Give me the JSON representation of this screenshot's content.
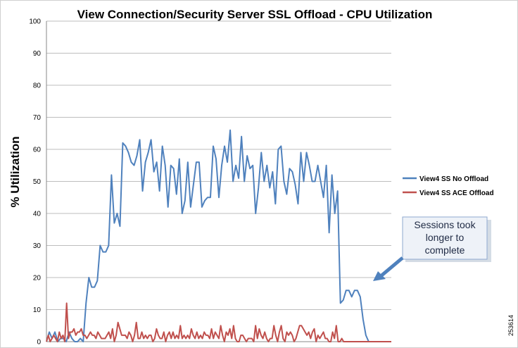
{
  "chart_data": {
    "type": "line",
    "title": "View Connection/Security Server SSL Offload - CPU Utilization",
    "xlabel": "",
    "ylabel": "% Utilization",
    "ylim": [
      0,
      100
    ],
    "yticks": [
      0,
      10,
      20,
      30,
      40,
      50,
      60,
      70,
      80,
      90,
      100
    ],
    "grid": true,
    "legend_position": "right",
    "series": [
      {
        "name": "View4 SS No Offload",
        "color": "#4f81bd",
        "values": [
          0,
          3,
          1,
          3,
          0,
          1,
          1,
          0,
          3,
          1,
          0,
          0,
          1,
          0,
          12,
          20,
          17,
          17,
          19,
          30,
          28,
          28,
          30,
          52,
          37,
          40,
          36,
          62,
          61,
          59,
          56,
          55,
          58,
          63,
          47,
          56,
          59,
          63,
          53,
          56,
          47,
          61,
          55,
          42,
          55,
          54,
          46,
          57,
          40,
          44,
          56,
          42,
          49,
          56,
          56,
          42,
          44,
          45,
          45,
          61,
          57,
          45,
          55,
          61,
          56,
          66,
          50,
          55,
          51,
          64,
          50,
          58,
          54,
          55,
          40,
          48,
          59,
          50,
          55,
          48,
          53,
          43,
          60,
          61,
          50,
          46,
          54,
          53,
          49,
          43,
          59,
          50,
          59,
          55,
          50,
          50,
          55,
          50,
          45,
          55,
          34,
          52,
          40,
          47,
          12,
          13,
          16,
          16,
          14,
          16,
          16,
          14,
          7,
          2,
          0,
          0,
          0,
          0,
          0,
          0,
          0,
          0,
          0
        ]
      },
      {
        "name": "View4 SS ACE Offload",
        "color": "#c0504d",
        "values": [
          0,
          2,
          0,
          1,
          2,
          1,
          0,
          3,
          1,
          2,
          0,
          12,
          1,
          3,
          3,
          4,
          2,
          3,
          3,
          4,
          2,
          2,
          1,
          2,
          3,
          2,
          2,
          1,
          3,
          2,
          1,
          1,
          1,
          2,
          3,
          1,
          4,
          0,
          2,
          6,
          4,
          2,
          2,
          2,
          1,
          3,
          2,
          0,
          2,
          6,
          1,
          1,
          3,
          1,
          2,
          1,
          2,
          2,
          0,
          1,
          4,
          2,
          1,
          1,
          3,
          0,
          2,
          3,
          1,
          3,
          1,
          2,
          1,
          5,
          1,
          2,
          1,
          2,
          1,
          4,
          2,
          1,
          3,
          1,
          2,
          1,
          3,
          2,
          2,
          1,
          4,
          1,
          3,
          2,
          1,
          5,
          2,
          0,
          3,
          2,
          4,
          1,
          5,
          1,
          0,
          0,
          2,
          2,
          1,
          0,
          1,
          1,
          1,
          0,
          5,
          1,
          4,
          2,
          1,
          3,
          1,
          0,
          1,
          1,
          5,
          2,
          0,
          3,
          5,
          1,
          0,
          3,
          2,
          3,
          2,
          0,
          1,
          3,
          5,
          5,
          4,
          3,
          2,
          3,
          1,
          3,
          4,
          0,
          2,
          1,
          2,
          3,
          1,
          1,
          0,
          0,
          3,
          1,
          5,
          0,
          0,
          1,
          0,
          0,
          0,
          0,
          0,
          0,
          0,
          0,
          0,
          0,
          0,
          0,
          0,
          0,
          0,
          0,
          0,
          0,
          0,
          0,
          0,
          0,
          0,
          0,
          0,
          0,
          0
        ]
      }
    ],
    "annotation": {
      "text_lines": [
        "Sessions took",
        "longer to",
        "complete"
      ]
    }
  },
  "figure_id": "253614",
  "colors": {
    "grid": "#bdbdbd",
    "axis": "#888888",
    "callout_fill": "#eef2f8",
    "callout_border": "#8fa9cf",
    "arrow": "#4f81bd"
  }
}
